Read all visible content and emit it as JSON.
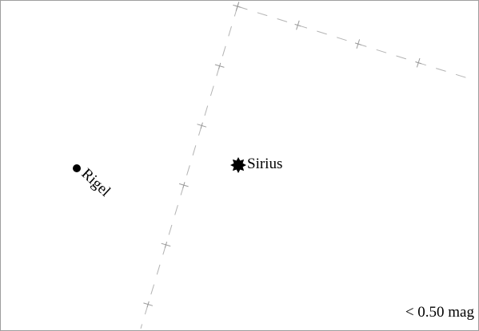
{
  "map": {
    "stars": [
      {
        "id": "sirius",
        "name": "Sirius",
        "symbol": "star-burst-icon"
      },
      {
        "id": "rigel",
        "name": "Rigel",
        "symbol": "filled-circle-icon"
      }
    ],
    "magnitude_limit_label": "< 0.50 mag",
    "colors": {
      "background": "#ffffff",
      "frame": "#9e9e9e",
      "grid": "#b3b3b3",
      "text": "#000000"
    }
  }
}
